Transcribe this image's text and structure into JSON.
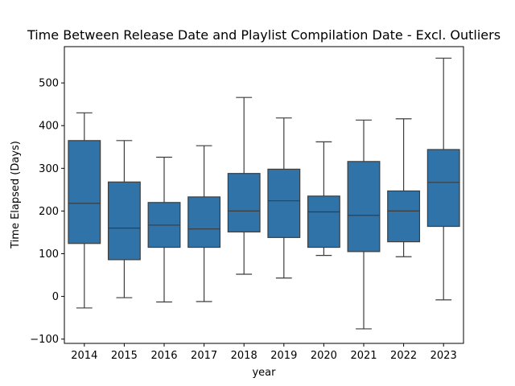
{
  "chart_data": {
    "type": "box",
    "title": "Time Between Release Date and Playlist Compilation Date - Excl. Outliers",
    "xlabel": "year",
    "ylabel": "Time Elapsed (Days)",
    "ylim": [
      -110,
      585
    ],
    "yticks": [
      -100,
      0,
      100,
      200,
      300,
      400,
      500
    ],
    "grid": false,
    "box_color": "#2f73a9",
    "line_color": "#3d3d3d",
    "categories": [
      "2014",
      "2015",
      "2016",
      "2017",
      "2018",
      "2019",
      "2020",
      "2021",
      "2022",
      "2023"
    ],
    "boxes": [
      {
        "category": "2014",
        "whisker_low": -27,
        "q1": 124,
        "median": 218,
        "q3": 365,
        "whisker_high": 430
      },
      {
        "category": "2015",
        "whisker_low": -3,
        "q1": 86,
        "median": 160,
        "q3": 268,
        "whisker_high": 365
      },
      {
        "category": "2016",
        "whisker_low": -13,
        "q1": 115,
        "median": 167,
        "q3": 220,
        "whisker_high": 326
      },
      {
        "category": "2017",
        "whisker_low": -12,
        "q1": 115,
        "median": 158,
        "q3": 233,
        "whisker_high": 353
      },
      {
        "category": "2018",
        "whisker_low": 52,
        "q1": 151,
        "median": 200,
        "q3": 288,
        "whisker_high": 466
      },
      {
        "category": "2019",
        "whisker_low": 43,
        "q1": 138,
        "median": 224,
        "q3": 298,
        "whisker_high": 418
      },
      {
        "category": "2020",
        "whisker_low": 96,
        "q1": 115,
        "median": 198,
        "q3": 235,
        "whisker_high": 362
      },
      {
        "category": "2021",
        "whisker_low": -76,
        "q1": 105,
        "median": 190,
        "q3": 316,
        "whisker_high": 413
      },
      {
        "category": "2022",
        "whisker_low": 93,
        "q1": 128,
        "median": 200,
        "q3": 247,
        "whisker_high": 416
      },
      {
        "category": "2023",
        "whisker_low": -8,
        "q1": 164,
        "median": 267,
        "q3": 344,
        "whisker_high": 558
      }
    ]
  }
}
